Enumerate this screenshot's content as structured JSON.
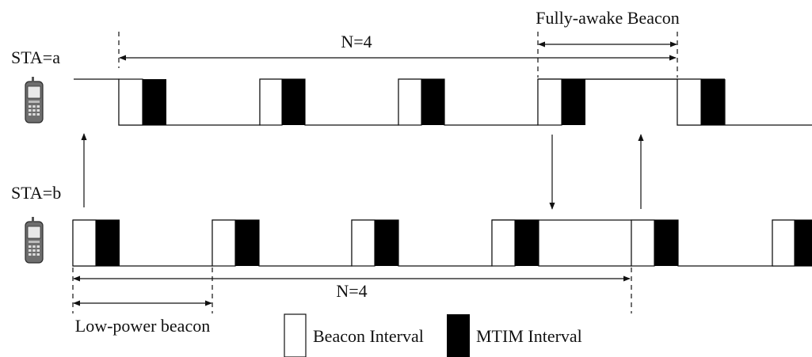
{
  "stations": [
    {
      "label": "STA=a",
      "icon": "mobile-phone-icon"
    },
    {
      "label": "STA=b",
      "icon": "mobile-phone-icon"
    }
  ],
  "periods": {
    "a_label": "N=4",
    "b_label": "N=4"
  },
  "spans": {
    "fully_awake": "Fully-awake Beacon",
    "low_power": "Low-power beacon"
  },
  "legend": {
    "beacon_interval": "Beacon Interval",
    "mtim_interval": "MTIM Interval"
  },
  "colors": {
    "line": "#111111",
    "mtim_fill": "#000000",
    "beacon_fill": "#ffffff"
  }
}
